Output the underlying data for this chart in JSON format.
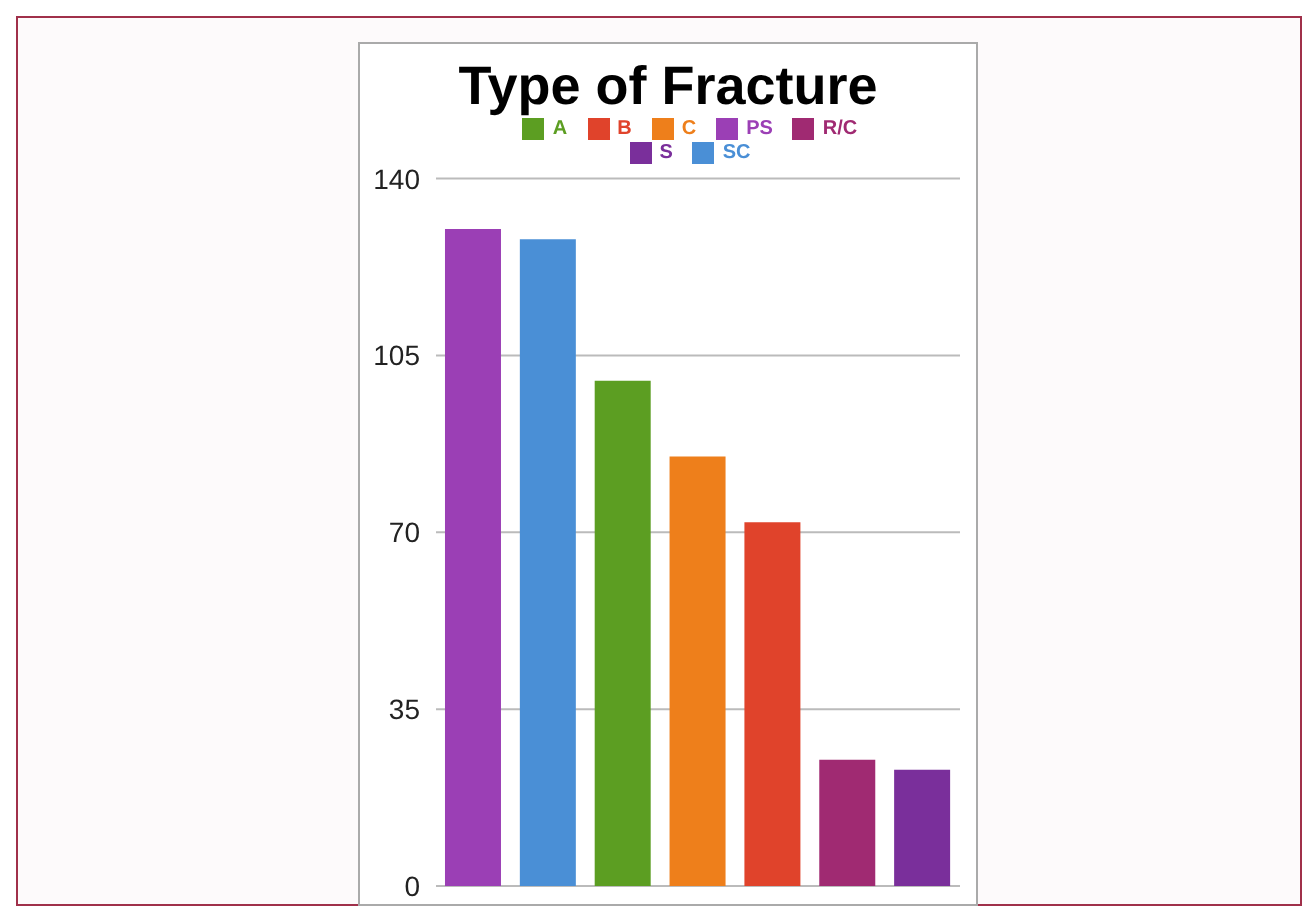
{
  "chart_data": {
    "type": "bar",
    "title": "Type of Fracture",
    "categories": [
      null,
      null,
      null,
      null,
      null,
      null,
      null
    ],
    "stacked": true,
    "series": [
      {
        "name": "PS",
        "color": "#9b3fb5",
        "values": [
          130,
          null,
          null,
          null,
          null,
          null,
          null
        ]
      },
      {
        "name": "SC",
        "color": "#4a8fd6",
        "values": [
          null,
          128,
          null,
          null,
          null,
          null,
          null
        ]
      },
      {
        "name": "A",
        "color": "#5c9e22",
        "values": [
          null,
          null,
          100,
          null,
          null,
          null,
          null
        ]
      },
      {
        "name": "C",
        "color": "#ee7f1b",
        "values": [
          null,
          null,
          null,
          85,
          null,
          null,
          null
        ]
      },
      {
        "name": "B",
        "color": "#e0432b",
        "values": [
          null,
          null,
          null,
          null,
          72,
          null,
          null
        ]
      },
      {
        "name": "R/C",
        "color": "#a02a72",
        "values": [
          null,
          null,
          null,
          null,
          null,
          25,
          null
        ]
      },
      {
        "name": "S",
        "color": "#7a2f9b",
        "values": [
          null,
          null,
          null,
          null,
          null,
          null,
          23
        ]
      }
    ],
    "ylim": [
      0,
      140
    ],
    "yticks": [
      0,
      35,
      70,
      105,
      140
    ],
    "grid": "y",
    "legend": "top"
  }
}
